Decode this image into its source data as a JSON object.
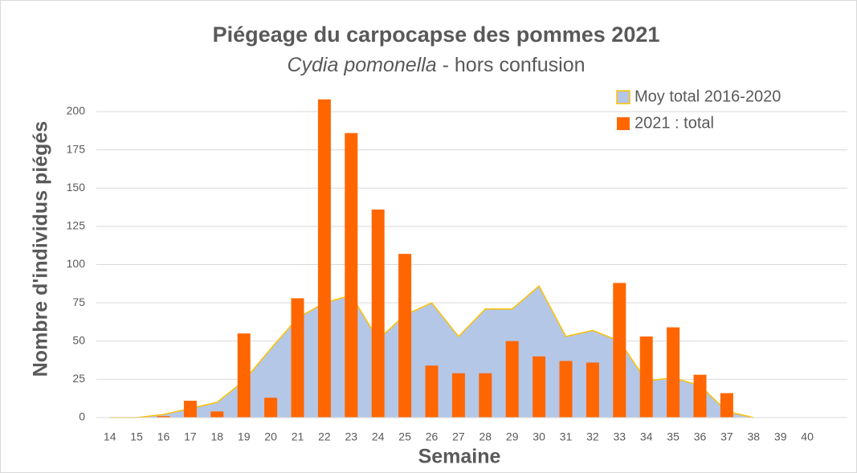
{
  "chart_data": {
    "type": "bar_area",
    "title": "Piégeage du carpocapse des pommes 2021",
    "subtitle_species": "Cydia pomonella",
    "subtitle_rest": " - hors confusion",
    "x_label": "Semaine",
    "y_label": "Nombre d'individus piégés",
    "categories": [
      "14",
      "15",
      "16",
      "17",
      "18",
      "19",
      "20",
      "21",
      "22",
      "23",
      "24",
      "25",
      "26",
      "27",
      "28",
      "29",
      "30",
      "31",
      "32",
      "33",
      "34",
      "35",
      "36",
      "37",
      "38",
      "39",
      "40"
    ],
    "series": [
      {
        "name": "Moy total 2016-2020",
        "type": "area",
        "color": "#b4c7e7",
        "line_color": "#ffc000",
        "values": [
          0,
          0,
          2,
          6,
          10,
          24,
          45,
          65,
          75,
          80,
          51,
          67,
          75,
          53,
          71,
          71,
          86,
          53,
          57,
          50,
          24,
          26,
          21,
          4,
          0,
          null,
          null
        ]
      },
      {
        "name": "2021 : total",
        "type": "bar",
        "color": "#ff6600",
        "values": [
          0,
          0,
          1,
          11,
          4,
          55,
          13,
          78,
          208,
          186,
          136,
          107,
          34,
          29,
          29,
          50,
          40,
          37,
          36,
          88,
          53,
          59,
          28,
          16,
          0,
          0,
          0
        ]
      }
    ],
    "ylim": [
      0,
      200
    ],
    "yticks": [
      0,
      25,
      50,
      75,
      100,
      125,
      150,
      175,
      200
    ],
    "grid": true,
    "legend": "top-right"
  }
}
